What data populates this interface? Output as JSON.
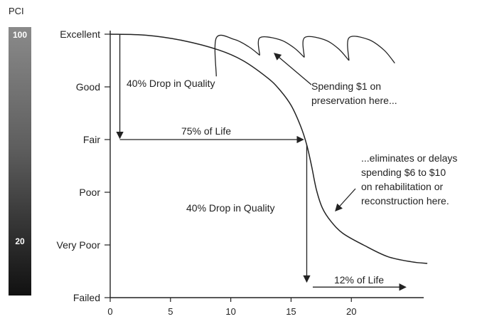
{
  "pci_scale": {
    "title": "PCI",
    "top_label": "100",
    "bottom_label": "20"
  },
  "chart_data": {
    "type": "line",
    "xlabel": "",
    "ylabel": "",
    "x_ticks": [
      "0",
      "5",
      "10",
      "15",
      "20"
    ],
    "xlim": [
      0,
      26
    ],
    "y_categories": [
      "Failed",
      "Very Poor",
      "Poor",
      "Fair",
      "Good",
      "Excellent"
    ],
    "ylim": [
      0,
      5
    ],
    "series": [
      {
        "points": [
          [
            0,
            5
          ],
          [
            3,
            4.98
          ],
          [
            6,
            4.88
          ],
          [
            9,
            4.7
          ],
          [
            11,
            4.5
          ],
          [
            13,
            4.18
          ],
          [
            14,
            3.96
          ],
          [
            15,
            3.65
          ],
          [
            15.8,
            3.25
          ],
          [
            16.3,
            2.9
          ],
          [
            16.7,
            2.5
          ],
          [
            17.1,
            2.05
          ],
          [
            17.6,
            1.7
          ],
          [
            18.3,
            1.45
          ],
          [
            19.3,
            1.22
          ],
          [
            21,
            1.0
          ],
          [
            23,
            0.78
          ],
          [
            25,
            0.68
          ],
          [
            26.3,
            0.65
          ]
        ]
      },
      {
        "segments": [
          [
            [
              8.8,
              4.2
            ],
            [
              8.8,
              4.93
            ],
            [
              10.3,
              4.9
            ],
            [
              11.5,
              4.76
            ],
            [
              12.4,
              4.6
            ]
          ],
          [
            [
              12.4,
              4.6
            ],
            [
              12.4,
              4.93
            ],
            [
              14,
              4.9
            ],
            [
              15.2,
              4.75
            ],
            [
              16.1,
              4.56
            ]
          ],
          [
            [
              16.1,
              4.56
            ],
            [
              16.1,
              4.93
            ],
            [
              17.7,
              4.9
            ],
            [
              18.9,
              4.73
            ],
            [
              19.8,
              4.5
            ]
          ],
          [
            [
              19.8,
              4.5
            ],
            [
              19.8,
              4.93
            ],
            [
              21.4,
              4.9
            ],
            [
              22.7,
              4.7
            ],
            [
              23.6,
              4.45
            ]
          ]
        ]
      }
    ],
    "annotations": {
      "drop_left": "40% Drop in Quality",
      "life_75": "75% of Life",
      "drop_right": "40% Drop in Quality",
      "life_12": "12% of Life",
      "preservation_line1": "Spending $1 on",
      "preservation_line2": "preservation here...",
      "rehab_line1": "...eliminates or delays",
      "rehab_line2": "spending $6 to $10",
      "rehab_line3": "on rehabilitation or",
      "rehab_line4": "reconstruction here."
    },
    "grid": false,
    "legend": "none"
  }
}
